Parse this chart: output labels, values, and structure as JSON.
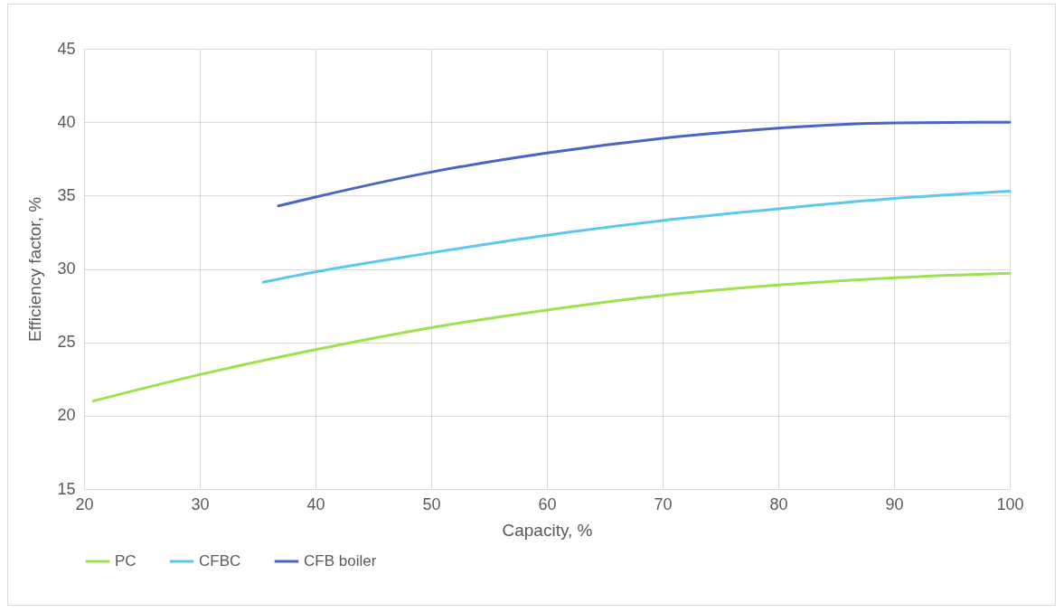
{
  "chart_data": {
    "type": "line",
    "xlabel": "Capacity, %",
    "ylabel": "Efficiency factor, %",
    "xlim": [
      20,
      100
    ],
    "xticks": [
      20,
      30,
      40,
      50,
      60,
      70,
      80,
      90,
      100
    ],
    "ylim": [
      15,
      45
    ],
    "yticks": [
      15,
      20,
      25,
      30,
      35,
      40,
      45
    ],
    "grid": true,
    "legend": "bottom",
    "marker": "none",
    "line_style": "solid",
    "series": [
      {
        "name": "PC",
        "color": "#9be24f",
        "x": [
          20.8,
          30,
          40,
          50,
          60,
          70,
          80,
          90,
          100
        ],
        "values": [
          21.0,
          22.8,
          24.5,
          26.0,
          27.2,
          28.2,
          28.9,
          29.4,
          29.7
        ]
      },
      {
        "name": "CFBC",
        "color": "#5bc8f0",
        "x": [
          35.5,
          40,
          50,
          60,
          70,
          80,
          90,
          100
        ],
        "values": [
          29.1,
          29.8,
          31.1,
          32.3,
          33.3,
          34.1,
          34.8,
          35.3
        ]
      },
      {
        "name": "CFB boiler",
        "color": "#4a64c4",
        "x": [
          36.8,
          40,
          50,
          60,
          70,
          80,
          90,
          100
        ],
        "values": [
          34.3,
          34.9,
          36.6,
          37.9,
          38.9,
          39.6,
          39.95,
          40.0
        ]
      }
    ]
  }
}
